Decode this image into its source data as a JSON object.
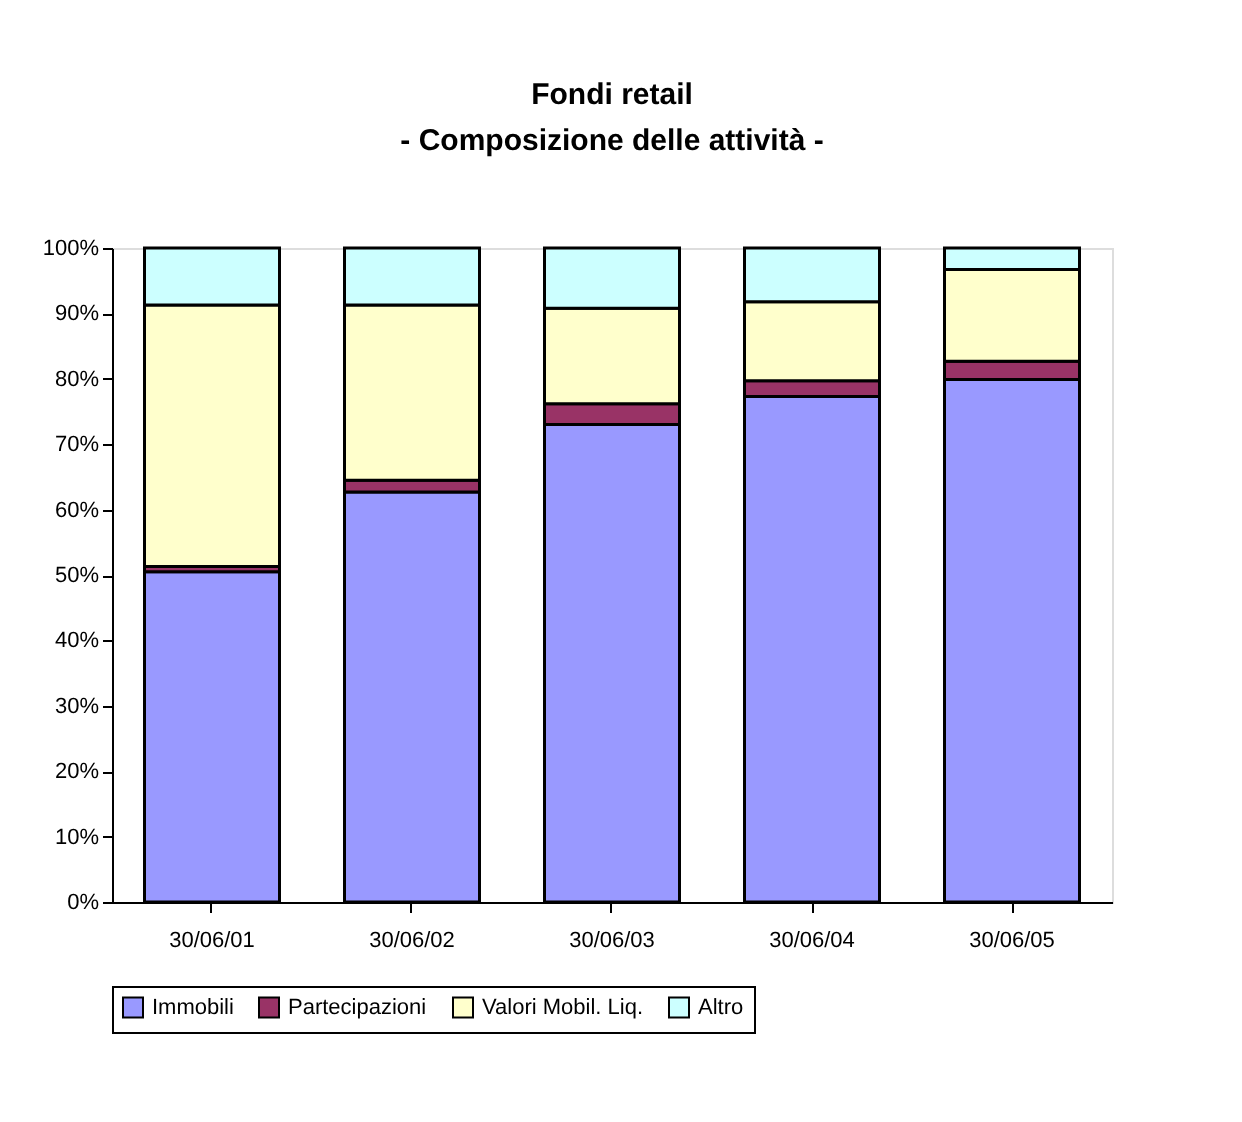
{
  "chart_data": {
    "type": "bar",
    "stacked": true,
    "title": "Fondi retail",
    "subtitle": "- Composizione delle attività -",
    "categories": [
      "30/06/01",
      "30/06/02",
      "30/06/03",
      "30/06/04",
      "30/06/05"
    ],
    "series": [
      {
        "name": "Immobili",
        "color": "#9999ff",
        "values": [
          50.5,
          62.7,
          73,
          77.3,
          79.9
        ]
      },
      {
        "name": "Partecipazioni",
        "color": "#993366",
        "values": [
          0.8,
          1.8,
          3.2,
          2.4,
          2.8
        ]
      },
      {
        "name": "Valori Mobil. Liq.",
        "color": "#ffffcc",
        "values": [
          40,
          26.8,
          14.6,
          12.1,
          14
        ]
      },
      {
        "name": "Altro",
        "color": "#ccffff",
        "values": [
          8.7,
          8.7,
          9.2,
          8.2,
          3.3
        ]
      }
    ],
    "ylim": [
      0,
      100
    ],
    "yticks": [
      {
        "value": 0,
        "label": "0%"
      },
      {
        "value": 10,
        "label": "10%"
      },
      {
        "value": 20,
        "label": "20%"
      },
      {
        "value": 30,
        "label": "30%"
      },
      {
        "value": 40,
        "label": "40%"
      },
      {
        "value": 50,
        "label": "50%"
      },
      {
        "value": 60,
        "label": "60%"
      },
      {
        "value": 70,
        "label": "70%"
      },
      {
        "value": 80,
        "label": "80%"
      },
      {
        "value": 90,
        "label": "90%"
      },
      {
        "value": 100,
        "label": "100%"
      }
    ],
    "grid": false,
    "legend": "bottom"
  }
}
